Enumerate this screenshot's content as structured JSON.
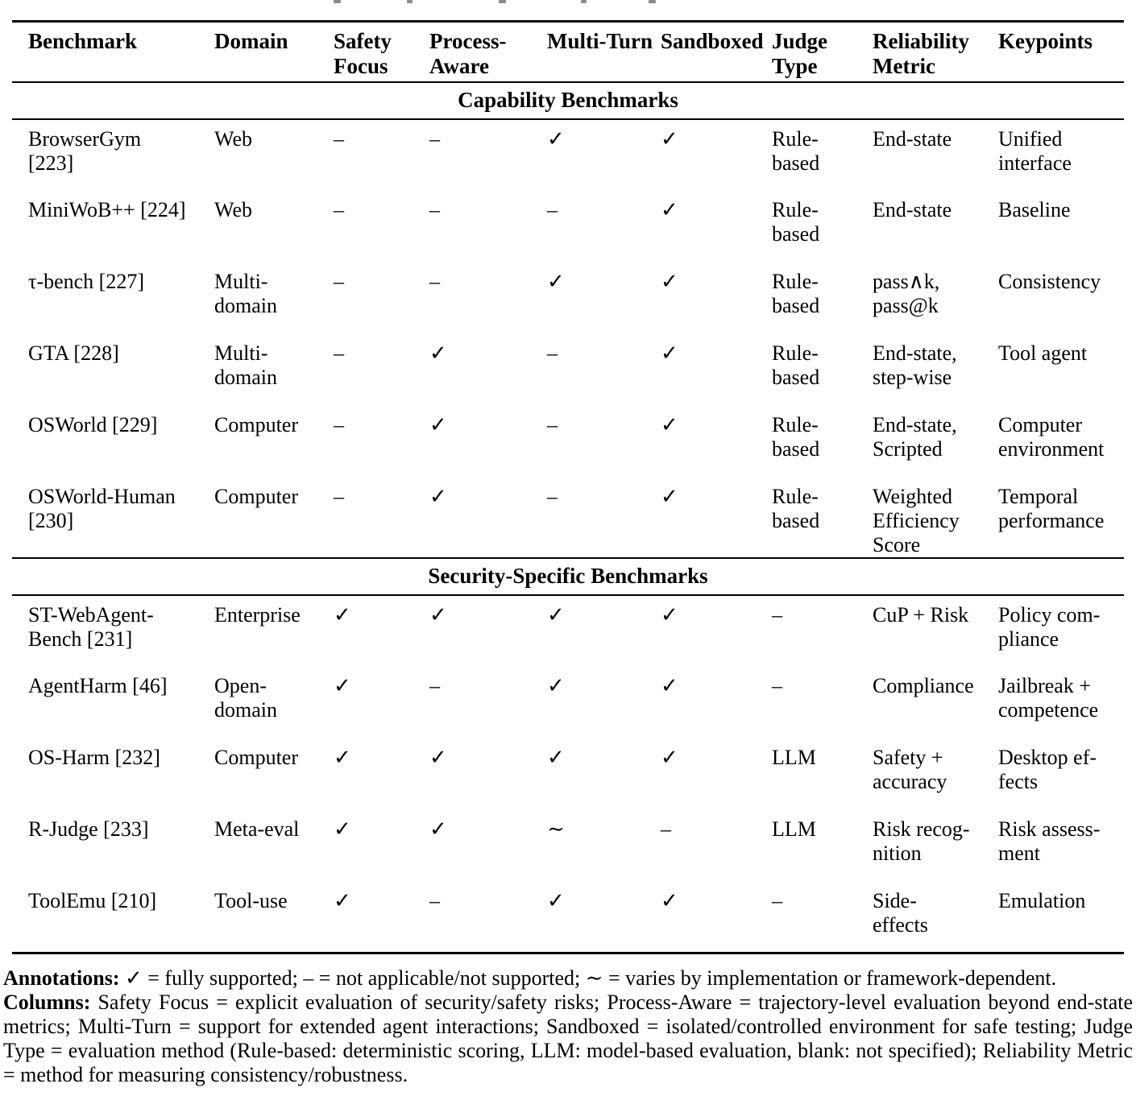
{
  "table": {
    "headers": [
      "Benchmark",
      "Domain",
      "Safety Focus",
      "Process-Aware",
      "Multi-Turn",
      "Sandboxed",
      "Judge Type",
      "Reliability Metric",
      "Keypoints"
    ],
    "sections": [
      {
        "title": "Capability Benchmarks",
        "rows": [
          {
            "cells": [
              "BrowserGym\n[223]",
              "Web",
              "–",
              "–",
              "✓",
              "✓",
              "Rule-\nbased",
              "End-state",
              "Unified\ninterface"
            ]
          },
          {
            "cells": [
              "MiniWoB++ [224]",
              "Web",
              "–",
              "–",
              "–",
              "✓",
              "Rule-\nbased",
              "End-state",
              "Baseline"
            ]
          },
          {
            "cells": [
              "τ-bench [227]",
              "Multi-\ndomain",
              "–",
              "–",
              "✓",
              "✓",
              "Rule-\nbased",
              "pass∧k,\npass@k",
              "Consistency"
            ]
          },
          {
            "cells": [
              "GTA [228]",
              "Multi-\ndomain",
              "–",
              "✓",
              "–",
              "✓",
              "Rule-\nbased",
              "End-state,\nstep-wise",
              "Tool agent"
            ]
          },
          {
            "cells": [
              "OSWorld [229]",
              "Computer",
              "–",
              "✓",
              "–",
              "✓",
              "Rule-\nbased",
              "End-state,\nScripted",
              "Computer\nenvironment"
            ]
          },
          {
            "cells": [
              "OSWorld-Human\n[230]",
              "Computer",
              "–",
              "✓",
              "–",
              "✓",
              "Rule-\nbased",
              "Weighted\nEfficiency\nScore",
              "Temporal\nperformance"
            ]
          }
        ]
      },
      {
        "title": "Security-Specific Benchmarks",
        "rows": [
          {
            "cells": [
              "ST-WebAgent-\nBench [231]",
              "Enterprise",
              "✓",
              "✓",
              "✓",
              "✓",
              "–",
              "CuP + Risk",
              "Policy com-\npliance"
            ]
          },
          {
            "cells": [
              "AgentHarm [46]",
              "Open-\ndomain",
              "✓",
              "–",
              "✓",
              "✓",
              "–",
              "Compliance",
              "Jailbreak +\ncompetence"
            ]
          },
          {
            "cells": [
              "OS-Harm [232]",
              "Computer",
              "✓",
              "✓",
              "✓",
              "✓",
              "LLM",
              "Safety +\naccuracy",
              "Desktop ef-\nfects"
            ]
          },
          {
            "cells": [
              "R-Judge [233]",
              "Meta-eval",
              "✓",
              "✓",
              "∼",
              "–",
              "LLM",
              "Risk recog-\nnition",
              "Risk assess-\nment"
            ]
          },
          {
            "cells": [
              "ToolEmu [210]",
              "Tool-use",
              "✓",
              "–",
              "✓",
              "✓",
              "–",
              "Side-\neffects",
              "Emulation"
            ]
          }
        ]
      }
    ]
  },
  "footer": {
    "annotations_label": "Annotations:",
    "annotations_text": "✓ = fully supported; – = not applicable/not supported; ∼ = varies by implementation or framework-dependent.",
    "columns_label": "Columns:",
    "columns_text": "Safety Focus = explicit evaluation of security/safety risks; Process-Aware = trajectory-level evaluation beyond end-state metrics; Multi-Turn = support for extended agent interactions; Sandboxed = isolated/controlled environment for safe testing; Judge Type = evaluation method (Rule-based: deterministic scoring, LLM: model-based evaluation, blank: not specified); Reliability Metric = method for measuring consistency/robustness."
  }
}
